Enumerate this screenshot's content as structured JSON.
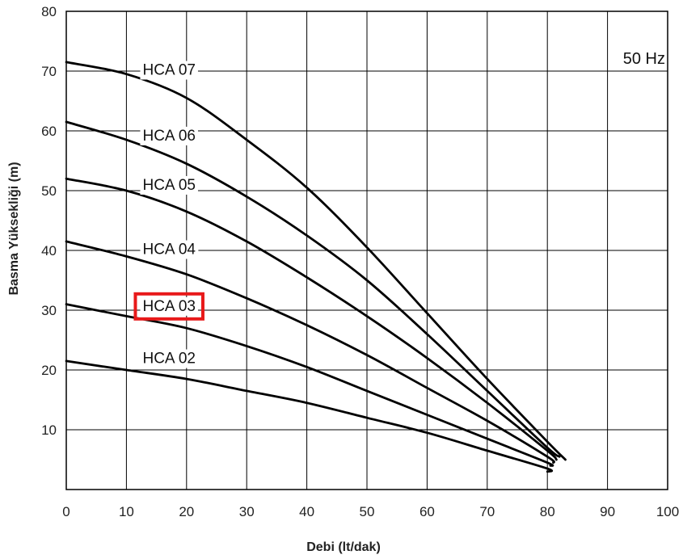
{
  "chart_data": {
    "type": "line",
    "title": "",
    "frequency_label": "50 Hz",
    "xlabel": "Debi (lt/dak)",
    "ylabel": "Basma Yüksekliği (m)",
    "xlim": [
      0,
      100
    ],
    "ylim": [
      0,
      80
    ],
    "x_ticks": [
      0,
      10,
      20,
      30,
      40,
      50,
      60,
      70,
      80,
      90,
      100
    ],
    "y_ticks": [
      10,
      20,
      30,
      40,
      50,
      60,
      70,
      80
    ],
    "grid": true,
    "highlighted_series": "HCA 03",
    "highlight_color": "#e8191a",
    "series": [
      {
        "name": "HCA 07",
        "x": [
          0,
          10,
          20,
          30,
          40,
          50,
          60,
          70,
          80,
          83
        ],
        "values": [
          71.5,
          69.5,
          65.5,
          58.5,
          50.5,
          40.5,
          29.5,
          18.5,
          8,
          5
        ]
      },
      {
        "name": "HCA 06",
        "x": [
          0,
          10,
          20,
          30,
          40,
          50,
          60,
          70,
          80,
          82
        ],
        "values": [
          61.5,
          58.5,
          54.5,
          49,
          42.5,
          35,
          26,
          16.5,
          7,
          5.5
        ]
      },
      {
        "name": "HCA 05",
        "x": [
          0,
          10,
          20,
          30,
          40,
          50,
          60,
          70,
          80,
          81.5
        ],
        "values": [
          52,
          50,
          46.5,
          41.5,
          35.5,
          29,
          22,
          14.5,
          6.5,
          5
        ]
      },
      {
        "name": "HCA 04",
        "x": [
          0,
          10,
          20,
          30,
          40,
          50,
          60,
          70,
          80,
          81
        ],
        "values": [
          41.5,
          39,
          36,
          32,
          27.5,
          22.5,
          17,
          11.5,
          5.5,
          4.5
        ]
      },
      {
        "name": "HCA 03",
        "x": [
          0,
          10,
          20,
          30,
          40,
          50,
          60,
          70,
          80,
          80.5
        ],
        "values": [
          31,
          29,
          27,
          24,
          20.5,
          16.5,
          12.5,
          8.5,
          4.5,
          4
        ]
      },
      {
        "name": "HCA 02",
        "x": [
          0,
          10,
          20,
          30,
          40,
          50,
          60,
          70,
          80,
          80
        ],
        "values": [
          21.5,
          20,
          18.5,
          16.5,
          14.5,
          12,
          9.5,
          6.5,
          3.5,
          3
        ]
      }
    ]
  }
}
